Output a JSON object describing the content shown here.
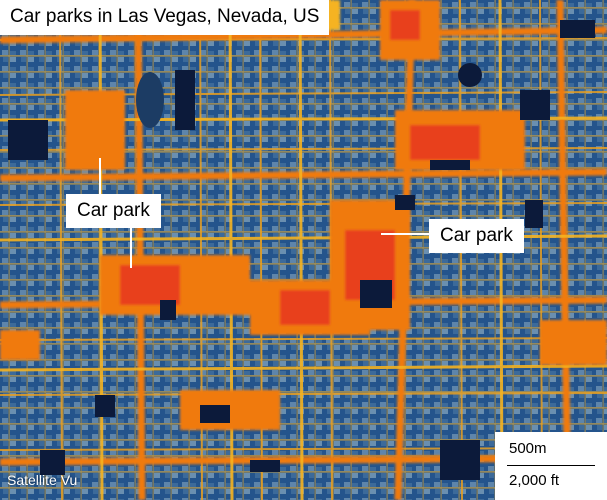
{
  "title": "Car parks in Las Vegas, Nevada, US",
  "labels": {
    "car_park_left": "Car park",
    "car_park_right": "Car park"
  },
  "credit": "Satellite Vu",
  "scale": {
    "metric": "500m",
    "imperial": "2,000 ft"
  },
  "colors": {
    "cool": "#24548c",
    "cool_light": "#6a8fb0",
    "warm_yellow": "#f5b320",
    "warm_orange": "#f07a10",
    "hot_red": "#e8401a",
    "dark_block": "#0c1a3a"
  }
}
